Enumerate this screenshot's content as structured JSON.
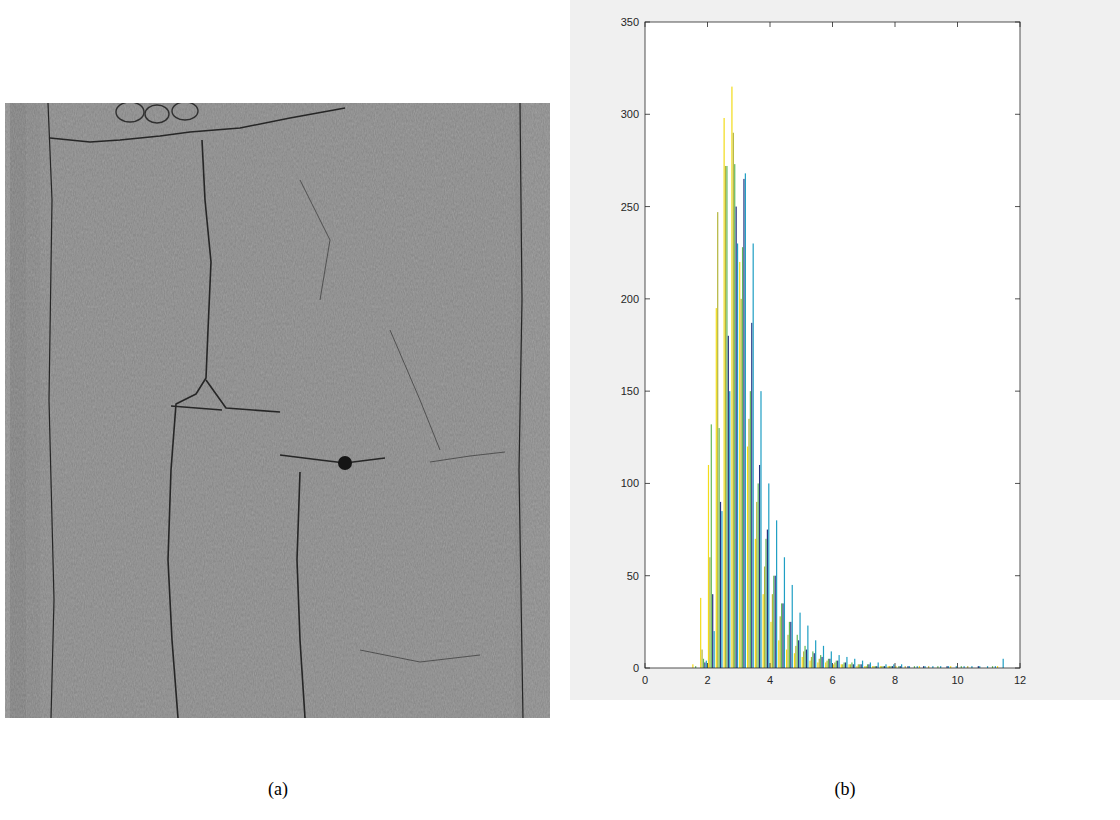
{
  "figure": {
    "labels": [
      "(a)",
      "(b)"
    ]
  },
  "chart_data": {
    "type": "histogram",
    "bins": [
      1.5,
      1.75,
      2,
      2.25,
      2.5,
      2.75,
      3,
      3.25,
      3.5,
      3.75,
      4,
      4.25,
      4.5,
      4.75,
      5,
      5.25,
      5.5,
      5.75,
      6,
      6.25,
      6.5,
      6.75,
      7,
      7.25,
      7.5,
      7.75,
      8,
      8.25,
      8.5,
      8.75,
      9,
      9.25,
      9.5,
      9.75,
      10,
      10.25,
      10.5,
      10.75,
      11,
      11.25,
      11.5
    ],
    "series": [
      {
        "color": "#f2dc1a",
        "values": [
          2,
          38,
          110,
          195,
          298,
          315,
          220,
          120,
          70,
          40,
          25,
          15,
          10,
          8,
          6,
          4,
          3,
          3,
          2,
          2,
          2,
          1,
          1,
          1,
          1,
          1,
          1,
          0,
          0,
          1,
          0,
          0,
          0,
          1,
          0,
          0,
          0,
          0,
          0,
          1
        ]
      },
      {
        "color": "#b3b43c",
        "values": [
          0,
          10,
          60,
          247,
          272,
          290,
          200,
          135,
          90,
          55,
          40,
          28,
          18,
          12,
          9,
          6,
          5,
          4,
          3,
          2,
          2,
          2,
          1,
          1,
          1,
          1,
          0,
          1,
          0,
          0,
          1,
          0,
          0,
          0,
          0,
          1,
          0,
          0,
          0,
          0
        ]
      },
      {
        "color": "#62b85a",
        "values": [
          1,
          5,
          132,
          130,
          272,
          273,
          228,
          150,
          100,
          70,
          50,
          35,
          25,
          18,
          12,
          9,
          7,
          5,
          4,
          3,
          3,
          2,
          2,
          1,
          1,
          1,
          1,
          0,
          1,
          0,
          0,
          1,
          0,
          0,
          1,
          0,
          0,
          0,
          1,
          0
        ]
      },
      {
        "color": "#25327f",
        "values": [
          0,
          3,
          40,
          90,
          180,
          250,
          265,
          187,
          110,
          75,
          50,
          35,
          25,
          15,
          10,
          8,
          6,
          5,
          4,
          3,
          2,
          2,
          2,
          1,
          1,
          1,
          1,
          1,
          0,
          1,
          0,
          0,
          1,
          0,
          0,
          0,
          1,
          0,
          0,
          0
        ]
      },
      {
        "color": "#1f9fc4",
        "values": [
          0,
          4,
          20,
          85,
          150,
          230,
          268,
          230,
          150,
          100,
          80,
          60,
          45,
          30,
          23,
          15,
          12,
          9,
          7,
          6,
          5,
          4,
          3,
          3,
          2,
          2,
          2,
          1,
          1,
          1,
          1,
          1,
          1,
          1,
          1,
          1,
          1,
          1,
          1,
          5
        ]
      }
    ],
    "xlim": [
      0,
      12
    ],
    "xticks": [
      0,
      2,
      4,
      6,
      8,
      10,
      12
    ],
    "ylim": [
      0,
      350
    ],
    "yticks": [
      0,
      50,
      100,
      150,
      200,
      250,
      300,
      350
    ],
    "grid": false
  }
}
